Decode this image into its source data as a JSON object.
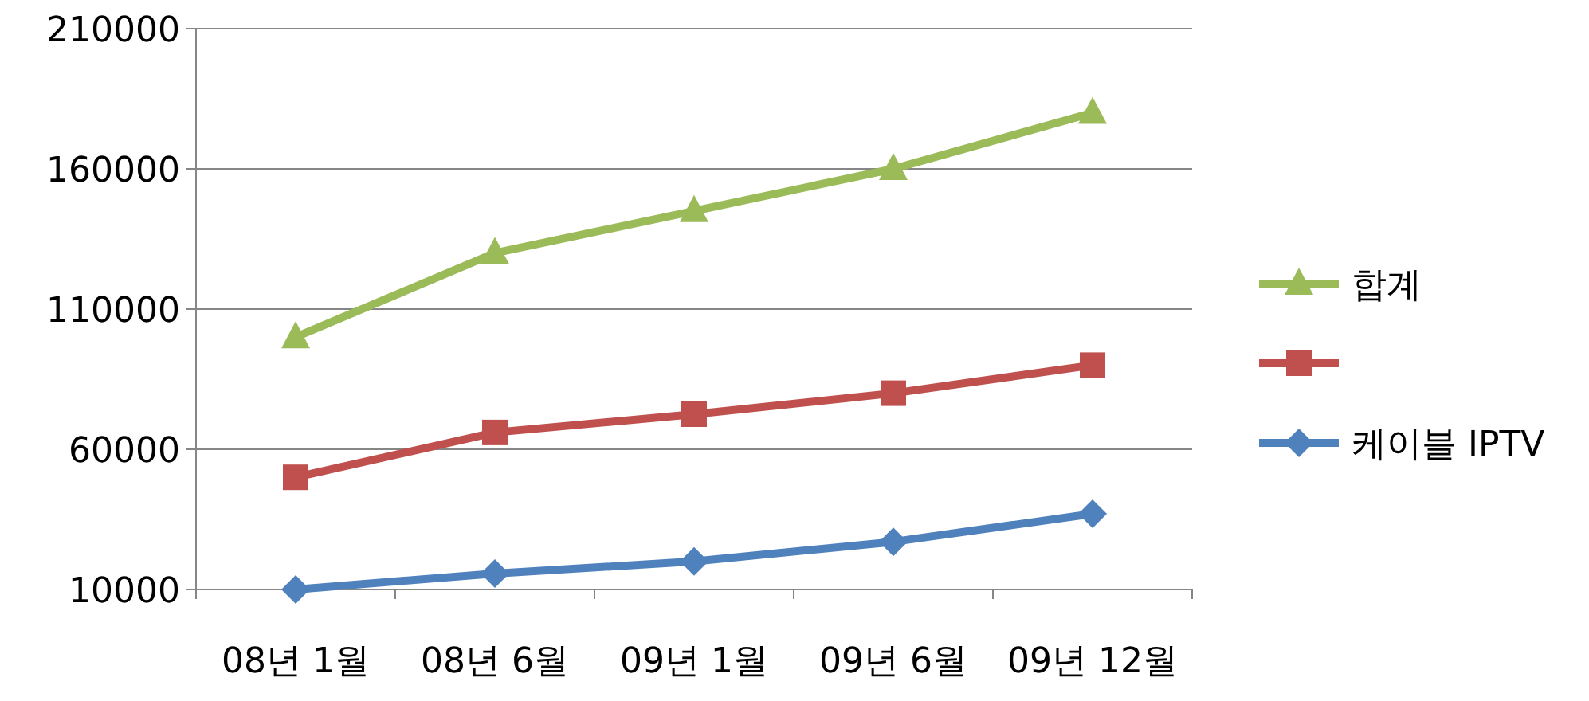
{
  "chart_data": {
    "type": "line",
    "categories": [
      "08년 1월",
      "08년 6월",
      "09년 1월",
      "09년 6월",
      "09년 12월"
    ],
    "series": [
      {
        "name": "합계",
        "color": "#9bbb59",
        "marker": "triangle",
        "values": [
          100000,
          130000,
          145000,
          160000,
          180000
        ]
      },
      {
        "color": "#c0504d",
        "marker": "square",
        "values": [
          50000,
          66000,
          72500,
          80000,
          90000
        ]
      },
      {
        "name": "케이블 IPTV",
        "color": "#4f81bd",
        "marker": "diamond",
        "values": [
          10000,
          15700,
          20000,
          27000,
          37000
        ]
      }
    ],
    "ylim": [
      10000,
      210000
    ],
    "yticks": [
      10000,
      60000,
      110000,
      160000,
      210000
    ],
    "grid": "y",
    "legend": "right",
    "line_style": "solid"
  }
}
